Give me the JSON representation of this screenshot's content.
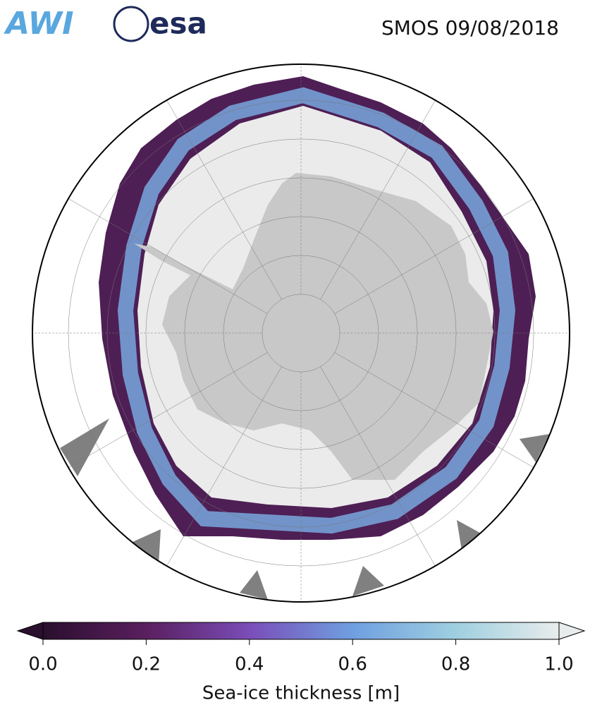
{
  "header": {
    "logos": [
      "AWI",
      "esa"
    ],
    "title": "SMOS 09/08/2018"
  },
  "colorbar": {
    "label": "Sea-ice thickness [m]",
    "lim": [
      0,
      1
    ],
    "ticks": [
      {
        "value": 0,
        "label": "0.0"
      },
      {
        "value": 0.2,
        "label": "0.2"
      },
      {
        "value": 0.4,
        "label": "0.4"
      },
      {
        "value": 0.6,
        "label": "0.6"
      },
      {
        "value": 0.8,
        "label": "0.8"
      },
      {
        "value": 1,
        "label": "1.0"
      }
    ],
    "colors": [
      "#2a0f2e",
      "#5a1f5f",
      "#7a4db8",
      "#6f9fe0",
      "#9ecfe0",
      "#e8ecec"
    ]
  }
}
